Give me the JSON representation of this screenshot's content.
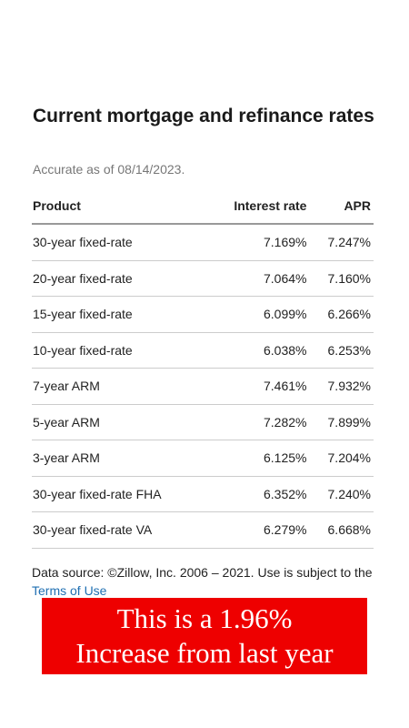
{
  "header": {
    "title": "Current mortgage and refinance rates",
    "subtitle": "Accurate as of 08/14/2023."
  },
  "table": {
    "columns": [
      "Product",
      "Interest rate",
      "APR"
    ],
    "rows": [
      [
        "30-year fixed-rate",
        "7.169%",
        "7.247%"
      ],
      [
        "20-year fixed-rate",
        "7.064%",
        "7.160%"
      ],
      [
        "15-year fixed-rate",
        "6.099%",
        "6.266%"
      ],
      [
        "10-year fixed-rate",
        "6.038%",
        "6.253%"
      ],
      [
        "7-year ARM",
        "7.461%",
        "7.932%"
      ],
      [
        "5-year ARM",
        "7.282%",
        "7.899%"
      ],
      [
        "3-year ARM",
        "6.125%",
        "7.204%"
      ],
      [
        "30-year fixed-rate FHA",
        "6.352%",
        "7.240%"
      ],
      [
        "30-year fixed-rate VA",
        "6.279%",
        "6.668%"
      ]
    ]
  },
  "footer": {
    "text": "Data source: ©Zillow, Inc. 2006 – 2021. Use is subject to the ",
    "link": "Terms of Use"
  },
  "banner": {
    "lines": [
      "This is a 1.96%",
      "Increase from last year"
    ]
  }
}
